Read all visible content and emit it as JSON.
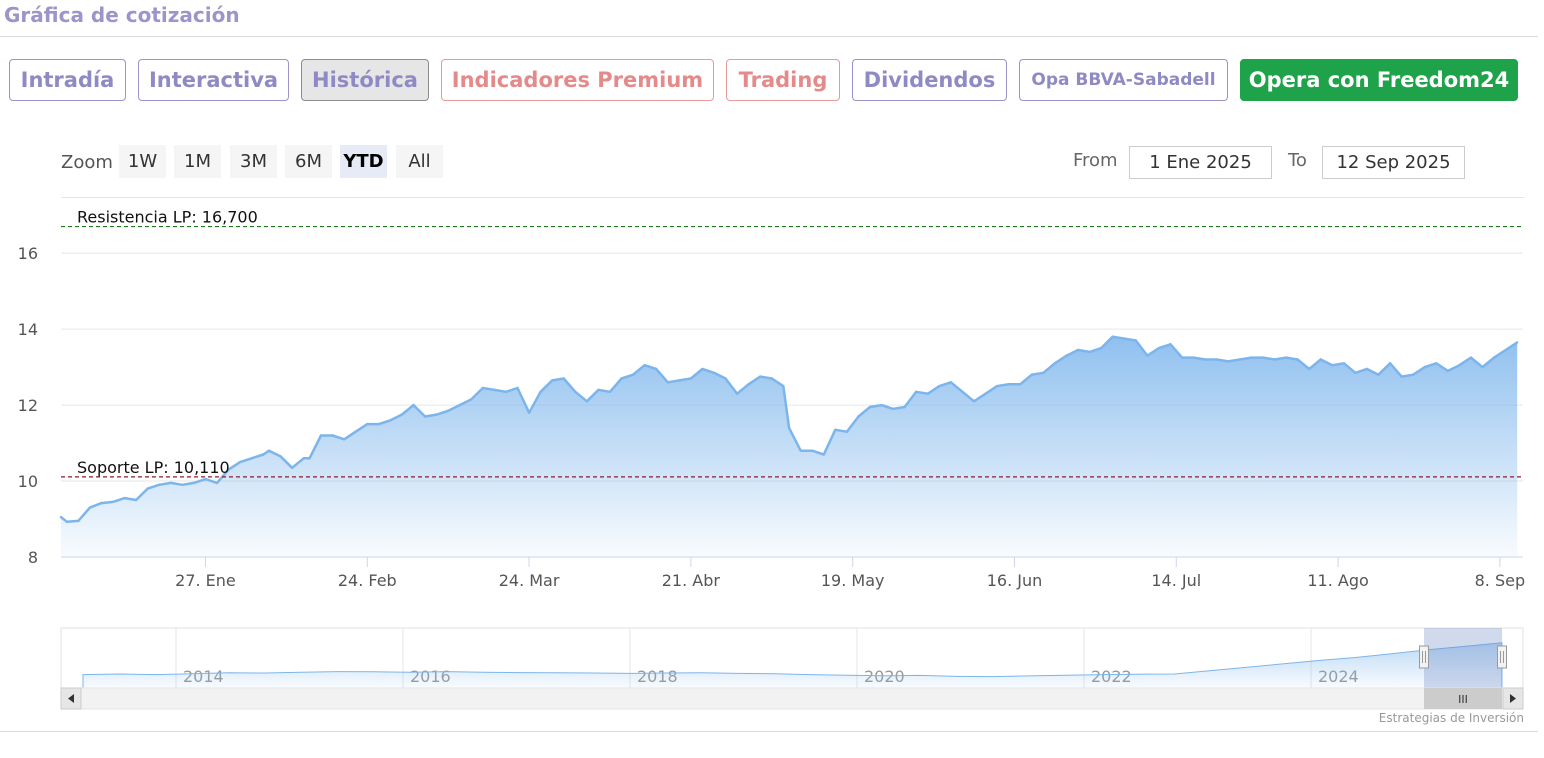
{
  "header": {
    "title": "Gráfica de cotización"
  },
  "tabs": [
    {
      "label": "Intradía",
      "style": "normal"
    },
    {
      "label": "Interactiva",
      "style": "normal"
    },
    {
      "label": "Histórica",
      "style": "active"
    },
    {
      "label": "Indicadores Premium",
      "style": "premium"
    },
    {
      "label": "Trading",
      "style": "premium"
    },
    {
      "label": "Dividendos",
      "style": "normal"
    },
    {
      "label": "Opa BBVA-Sabadell",
      "style": "small"
    },
    {
      "label": "Opera con Freedom24",
      "style": "cta"
    }
  ],
  "range_selector": {
    "zoom_label": "Zoom",
    "buttons": [
      "1W",
      "1M",
      "3M",
      "6M",
      "YTD",
      "All"
    ],
    "selected": "YTD",
    "from_label": "From",
    "from_value": "1 Ene 2025",
    "to_label": "To",
    "to_value": "12 Sep 2025"
  },
  "colors": {
    "accent": "#9b95c9",
    "line": "#7cb5ec",
    "cta": "#1fa34a",
    "resistance": "#1f7a1f",
    "support": "#8b1a2b"
  },
  "chart_data": {
    "type": "area",
    "title": "",
    "xlabel": "",
    "ylabel": "",
    "ylim": [
      8,
      17.4
    ],
    "xlim": [
      "2025-01-02",
      "2025-09-12"
    ],
    "yticks": [
      8,
      10,
      12,
      14,
      16
    ],
    "xticks": [
      {
        "date": "2025-01-27",
        "label": "27. Ene"
      },
      {
        "date": "2025-02-24",
        "label": "24. Feb"
      },
      {
        "date": "2025-03-24",
        "label": "24. Mar"
      },
      {
        "date": "2025-04-21",
        "label": "21. Abr"
      },
      {
        "date": "2025-05-19",
        "label": "19. May"
      },
      {
        "date": "2025-06-16",
        "label": "16. Jun"
      },
      {
        "date": "2025-07-14",
        "label": "14. Jul"
      },
      {
        "date": "2025-08-11",
        "label": "11. Ago"
      },
      {
        "date": "2025-09-08",
        "label": "8. Sep"
      }
    ],
    "grid": true,
    "plot_lines": [
      {
        "label": "Resistencia LP: 16,700",
        "value": 16.7,
        "color": "#1f7a1f"
      },
      {
        "label": "Soporte LP: 10,110",
        "value": 10.11,
        "color": "#8b1a2b"
      }
    ],
    "series": [
      {
        "points": [
          [
            "2025-01-02",
            9.05
          ],
          [
            "2025-01-03",
            8.93
          ],
          [
            "2025-01-05",
            8.95
          ],
          [
            "2025-01-07",
            9.3
          ],
          [
            "2025-01-09",
            9.42
          ],
          [
            "2025-01-11",
            9.45
          ],
          [
            "2025-01-13",
            9.55
          ],
          [
            "2025-01-15",
            9.5
          ],
          [
            "2025-01-17",
            9.8
          ],
          [
            "2025-01-19",
            9.9
          ],
          [
            "2025-01-21",
            9.95
          ],
          [
            "2025-01-23",
            9.9
          ],
          [
            "2025-01-25",
            9.95
          ],
          [
            "2025-01-27",
            10.05
          ],
          [
            "2025-01-29",
            9.95
          ],
          [
            "2025-01-31",
            10.3
          ],
          [
            "2025-02-02",
            10.5
          ],
          [
            "2025-02-04",
            10.6
          ],
          [
            "2025-02-06",
            10.7
          ],
          [
            "2025-02-07",
            10.8
          ],
          [
            "2025-02-09",
            10.65
          ],
          [
            "2025-02-11",
            10.35
          ],
          [
            "2025-02-13",
            10.6
          ],
          [
            "2025-02-14",
            10.6
          ],
          [
            "2025-02-16",
            11.2
          ],
          [
            "2025-02-18",
            11.2
          ],
          [
            "2025-02-20",
            11.1
          ],
          [
            "2025-02-22",
            11.3
          ],
          [
            "2025-02-24",
            11.5
          ],
          [
            "2025-02-26",
            11.5
          ],
          [
            "2025-02-28",
            11.6
          ],
          [
            "2025-03-02",
            11.75
          ],
          [
            "2025-03-04",
            12.0
          ],
          [
            "2025-03-06",
            11.7
          ],
          [
            "2025-03-08",
            11.75
          ],
          [
            "2025-03-10",
            11.85
          ],
          [
            "2025-03-12",
            12.0
          ],
          [
            "2025-03-14",
            12.15
          ],
          [
            "2025-03-16",
            12.45
          ],
          [
            "2025-03-18",
            12.4
          ],
          [
            "2025-03-20",
            12.35
          ],
          [
            "2025-03-22",
            12.45
          ],
          [
            "2025-03-24",
            11.8
          ],
          [
            "2025-03-26",
            12.35
          ],
          [
            "2025-03-28",
            12.65
          ],
          [
            "2025-03-30",
            12.7
          ],
          [
            "2025-04-01",
            12.35
          ],
          [
            "2025-04-03",
            12.1
          ],
          [
            "2025-04-05",
            12.4
          ],
          [
            "2025-04-07",
            12.35
          ],
          [
            "2025-04-09",
            12.7
          ],
          [
            "2025-04-11",
            12.8
          ],
          [
            "2025-04-13",
            13.05
          ],
          [
            "2025-04-15",
            12.95
          ],
          [
            "2025-04-17",
            12.6
          ],
          [
            "2025-04-19",
            12.65
          ],
          [
            "2025-04-21",
            12.7
          ],
          [
            "2025-04-23",
            12.95
          ],
          [
            "2025-04-25",
            12.85
          ],
          [
            "2025-04-27",
            12.7
          ],
          [
            "2025-04-29",
            12.3
          ],
          [
            "2025-05-01",
            12.55
          ],
          [
            "2025-05-03",
            12.75
          ],
          [
            "2025-05-05",
            12.7
          ],
          [
            "2025-05-07",
            12.5
          ],
          [
            "2025-05-08",
            11.4
          ],
          [
            "2025-05-10",
            10.8
          ],
          [
            "2025-05-12",
            10.8
          ],
          [
            "2025-05-14",
            10.7
          ],
          [
            "2025-05-16",
            11.35
          ],
          [
            "2025-05-18",
            11.3
          ],
          [
            "2025-05-20",
            11.7
          ],
          [
            "2025-05-22",
            11.95
          ],
          [
            "2025-05-24",
            12.0
          ],
          [
            "2025-05-26",
            11.9
          ],
          [
            "2025-05-28",
            11.95
          ],
          [
            "2025-05-30",
            12.35
          ],
          [
            "2025-06-01",
            12.3
          ],
          [
            "2025-06-03",
            12.5
          ],
          [
            "2025-06-05",
            12.6
          ],
          [
            "2025-06-07",
            12.35
          ],
          [
            "2025-06-09",
            12.1
          ],
          [
            "2025-06-11",
            12.3
          ],
          [
            "2025-06-13",
            12.5
          ],
          [
            "2025-06-15",
            12.55
          ],
          [
            "2025-06-17",
            12.55
          ],
          [
            "2025-06-19",
            12.8
          ],
          [
            "2025-06-21",
            12.85
          ],
          [
            "2025-06-23",
            13.1
          ],
          [
            "2025-06-25",
            13.3
          ],
          [
            "2025-06-27",
            13.45
          ],
          [
            "2025-06-29",
            13.4
          ],
          [
            "2025-07-01",
            13.5
          ],
          [
            "2025-07-03",
            13.8
          ],
          [
            "2025-07-05",
            13.75
          ],
          [
            "2025-07-07",
            13.7
          ],
          [
            "2025-07-09",
            13.3
          ],
          [
            "2025-07-11",
            13.5
          ],
          [
            "2025-07-13",
            13.6
          ],
          [
            "2025-07-15",
            13.25
          ],
          [
            "2025-07-17",
            13.25
          ],
          [
            "2025-07-19",
            13.2
          ],
          [
            "2025-07-21",
            13.2
          ],
          [
            "2025-07-23",
            13.15
          ],
          [
            "2025-07-25",
            13.2
          ],
          [
            "2025-07-27",
            13.25
          ],
          [
            "2025-07-29",
            13.25
          ],
          [
            "2025-07-31",
            13.2
          ],
          [
            "2025-08-02",
            13.25
          ],
          [
            "2025-08-04",
            13.2
          ],
          [
            "2025-08-06",
            12.95
          ],
          [
            "2025-08-08",
            13.2
          ],
          [
            "2025-08-10",
            13.05
          ],
          [
            "2025-08-12",
            13.1
          ],
          [
            "2025-08-14",
            12.85
          ],
          [
            "2025-08-16",
            12.95
          ],
          [
            "2025-08-18",
            12.8
          ],
          [
            "2025-08-20",
            13.1
          ],
          [
            "2025-08-22",
            12.75
          ],
          [
            "2025-08-24",
            12.8
          ],
          [
            "2025-08-26",
            13.0
          ],
          [
            "2025-08-28",
            13.1
          ],
          [
            "2025-08-30",
            12.9
          ],
          [
            "2025-09-01",
            13.05
          ],
          [
            "2025-09-03",
            13.25
          ],
          [
            "2025-09-05",
            13.0
          ],
          [
            "2025-09-07",
            13.25
          ],
          [
            "2025-09-09",
            13.45
          ],
          [
            "2025-09-11",
            13.65
          ]
        ]
      }
    ],
    "navigator": {
      "xticks": [
        "2014",
        "2016",
        "2018",
        "2020",
        "2022",
        "2024"
      ],
      "scroll_label": "III"
    }
  },
  "credit": "Estrategias de Inversión"
}
